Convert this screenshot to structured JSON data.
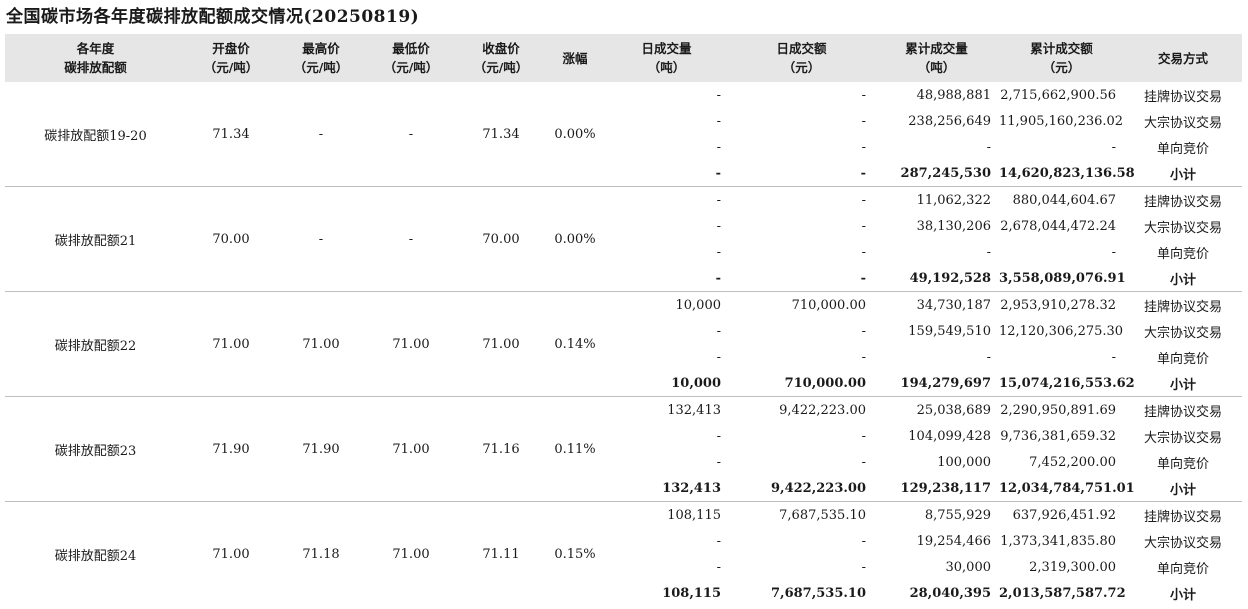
{
  "title": "全国碳市场各年度碳排放配额成交情况(20250819)",
  "headers": [
    [
      "各年度",
      "碳排放配额"
    ],
    [
      "开盘价",
      "（元/吨）"
    ],
    [
      "最高价",
      "（元/吨）"
    ],
    [
      "最低价",
      "（元/吨）"
    ],
    [
      "收盘价",
      "（元/吨）"
    ],
    [
      "涨幅"
    ],
    [
      "日成交量",
      "（吨）"
    ],
    [
      "日成交额",
      "（元）"
    ],
    [
      "累计成交量",
      "（吨）"
    ],
    [
      "累计成交额",
      "（元）"
    ],
    [
      "交易方式"
    ]
  ],
  "groups": [
    {
      "name": "碳排放配额19-20",
      "open": "71.34",
      "high": "-",
      "low": "-",
      "close": "71.34",
      "change": "0.00%",
      "rows": [
        {
          "dvol": "-",
          "damt": "-",
          "cvol": "48,988,881",
          "camt": "2,715,662,900.56",
          "method": "挂牌协议交易"
        },
        {
          "dvol": "-",
          "damt": "-",
          "cvol": "238,256,649",
          "camt": "11,905,160,236.02",
          "method": "大宗协议交易"
        },
        {
          "dvol": "-",
          "damt": "-",
          "cvol": "-",
          "camt": "-",
          "method": "单向竞价"
        },
        {
          "dvol": "-",
          "damt": "-",
          "cvol": "287,245,530",
          "camt": "14,620,823,136.58",
          "method": "小计"
        }
      ]
    },
    {
      "name": "碳排放配额21",
      "open": "70.00",
      "high": "-",
      "low": "-",
      "close": "70.00",
      "change": "0.00%",
      "rows": [
        {
          "dvol": "-",
          "damt": "-",
          "cvol": "11,062,322",
          "camt": "880,044,604.67",
          "method": "挂牌协议交易"
        },
        {
          "dvol": "-",
          "damt": "-",
          "cvol": "38,130,206",
          "camt": "2,678,044,472.24",
          "method": "大宗协议交易"
        },
        {
          "dvol": "-",
          "damt": "-",
          "cvol": "-",
          "camt": "-",
          "method": "单向竞价"
        },
        {
          "dvol": "-",
          "damt": "-",
          "cvol": "49,192,528",
          "camt": "3,558,089,076.91",
          "method": "小计"
        }
      ]
    },
    {
      "name": "碳排放配额22",
      "open": "71.00",
      "high": "71.00",
      "low": "71.00",
      "close": "71.00",
      "change": "0.14%",
      "rows": [
        {
          "dvol": "10,000",
          "damt": "710,000.00",
          "cvol": "34,730,187",
          "camt": "2,953,910,278.32",
          "method": "挂牌协议交易"
        },
        {
          "dvol": "-",
          "damt": "-",
          "cvol": "159,549,510",
          "camt": "12,120,306,275.30",
          "method": "大宗协议交易"
        },
        {
          "dvol": "-",
          "damt": "-",
          "cvol": "-",
          "camt": "-",
          "method": "单向竞价"
        },
        {
          "dvol": "10,000",
          "damt": "710,000.00",
          "cvol": "194,279,697",
          "camt": "15,074,216,553.62",
          "method": "小计"
        }
      ]
    },
    {
      "name": "碳排放配额23",
      "open": "71.90",
      "high": "71.90",
      "low": "71.00",
      "close": "71.16",
      "change": "0.11%",
      "rows": [
        {
          "dvol": "132,413",
          "damt": "9,422,223.00",
          "cvol": "25,038,689",
          "camt": "2,290,950,891.69",
          "method": "挂牌协议交易"
        },
        {
          "dvol": "-",
          "damt": "-",
          "cvol": "104,099,428",
          "camt": "9,736,381,659.32",
          "method": "大宗协议交易"
        },
        {
          "dvol": "-",
          "damt": "-",
          "cvol": "100,000",
          "camt": "7,452,200.00",
          "method": "单向竞价"
        },
        {
          "dvol": "132,413",
          "damt": "9,422,223.00",
          "cvol": "129,238,117",
          "camt": "12,034,784,751.01",
          "method": "小计"
        }
      ]
    },
    {
      "name": "碳排放配额24",
      "open": "71.00",
      "high": "71.18",
      "low": "71.00",
      "close": "71.11",
      "change": "0.15%",
      "rows": [
        {
          "dvol": "108,115",
          "damt": "7,687,535.10",
          "cvol": "8,755,929",
          "camt": "637,926,451.92",
          "method": "挂牌协议交易"
        },
        {
          "dvol": "-",
          "damt": "-",
          "cvol": "19,254,466",
          "camt": "1,373,341,835.80",
          "method": "大宗协议交易"
        },
        {
          "dvol": "-",
          "damt": "-",
          "cvol": "30,000",
          "camt": "2,319,300.00",
          "method": "单向竞价"
        },
        {
          "dvol": "108,115",
          "damt": "7,687,535.10",
          "cvol": "28,040,395",
          "camt": "2,013,587,587.72",
          "method": "小计"
        }
      ]
    }
  ]
}
